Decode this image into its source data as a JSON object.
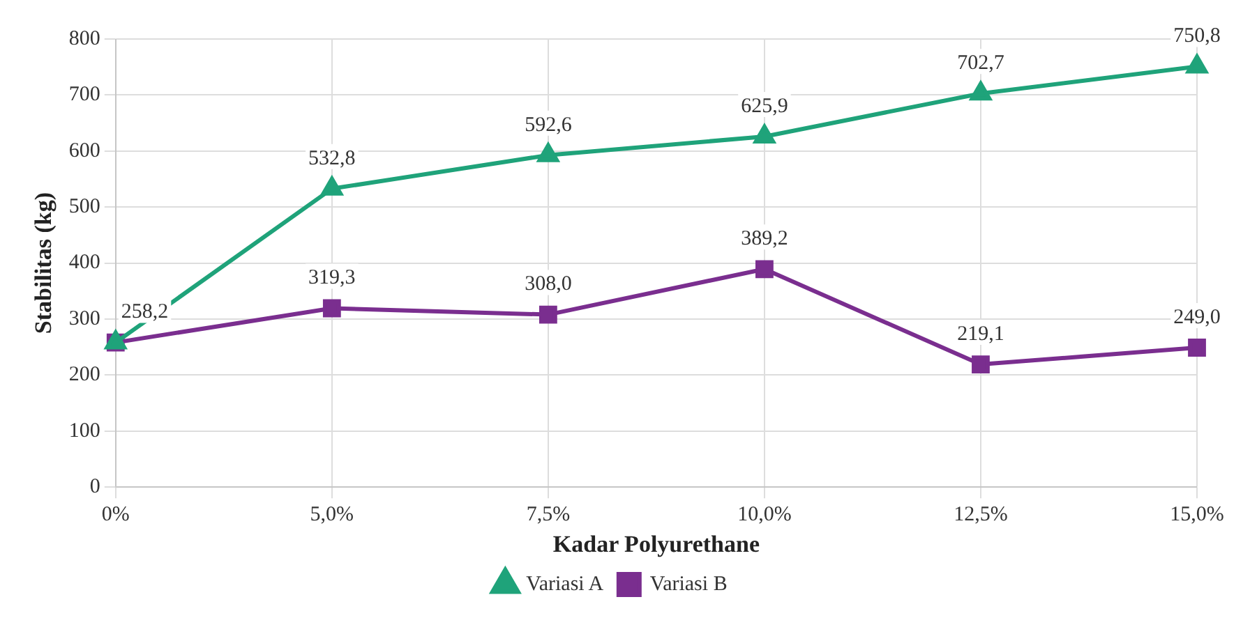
{
  "chart_data": {
    "type": "line",
    "xlabel": "Kadar Polyurethane",
    "ylabel": "Stabilitas (kg)",
    "categories": [
      "0%",
      "5,0%",
      "7,5%",
      "10,0%",
      "12,5%",
      "15,0%"
    ],
    "series": [
      {
        "name": "Variasi A",
        "color": "#1fa37a",
        "marker": "triangle",
        "values": [
          258.2,
          532.8,
          592.6,
          625.9,
          702.7,
          750.8
        ],
        "value_labels": [
          "258,2",
          "532,8",
          "592,6",
          "625,9",
          "702,7",
          "750,8"
        ]
      },
      {
        "name": "Variasi B",
        "color": "#7a2e8f",
        "marker": "square",
        "values": [
          258.2,
          319.3,
          308.0,
          389.2,
          219.1,
          249.0
        ],
        "value_labels": [
          null,
          "319,3",
          "308,0",
          "389,2",
          "219,1",
          "249,0"
        ]
      }
    ],
    "ylim": [
      0,
      800
    ],
    "yticks": [
      0,
      100,
      200,
      300,
      400,
      500,
      600,
      700,
      800
    ],
    "grid": true,
    "legend": "bottom"
  }
}
